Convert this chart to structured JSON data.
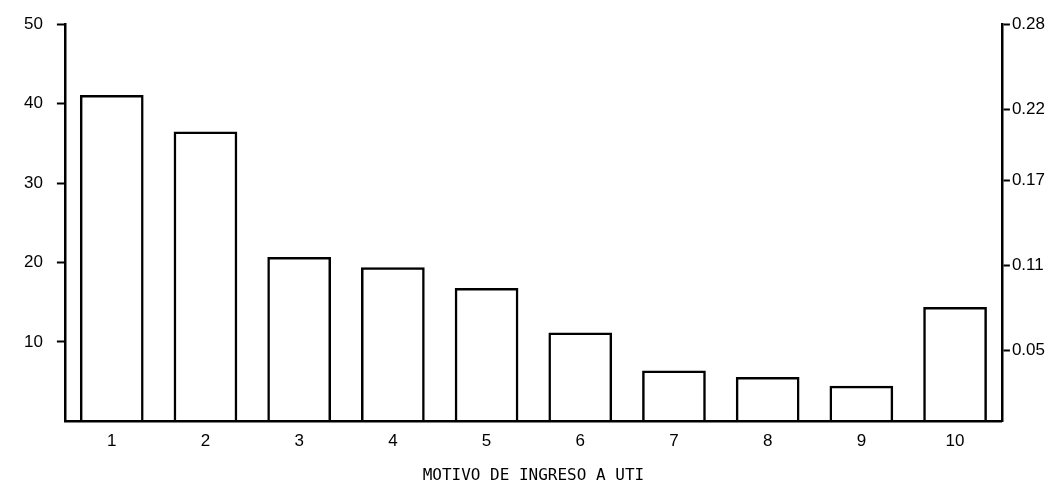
{
  "chart_data": {
    "type": "bar",
    "xlabel": "MOTIVO DE INGRESO A UTI",
    "categories": [
      "1",
      "2",
      "3",
      "4",
      "5",
      "6",
      "7",
      "8",
      "9",
      "10"
    ],
    "series": [
      {
        "color": "#000000",
        "values": [
          41.1,
          36.5,
          20.7,
          19.4,
          16.8,
          11.2,
          6.4,
          5.6,
          4.5,
          14.4
        ]
      }
    ],
    "ylim": [
      0,
      50
    ],
    "yticks": [
      10,
      20,
      30,
      40,
      50
    ],
    "y2lim": [
      0,
      0.28
    ],
    "y2ticks": [
      {
        "value": 0.05,
        "label": "0.05"
      },
      {
        "value": 0.11,
        "label": "0.11"
      },
      {
        "value": 0.17,
        "label": "0.17"
      },
      {
        "value": 0.22,
        "label": "0.22"
      },
      {
        "value": 0.28,
        "label": "0.28"
      }
    ],
    "grid": false,
    "legend": false
  }
}
